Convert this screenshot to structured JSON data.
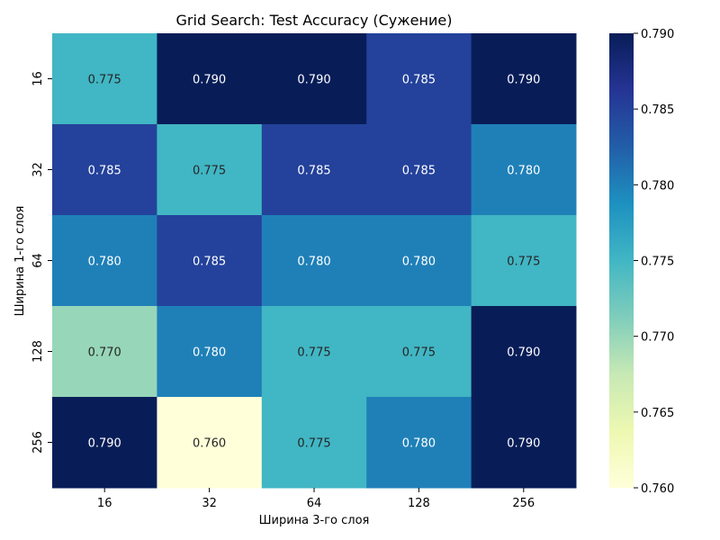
{
  "chart_data": {
    "type": "heatmap",
    "title": "Grid Search: Test Accuracy (Сужение)",
    "xlabel": "Ширина 3-го слоя",
    "ylabel": "Ширина 1-го слоя",
    "x_categories": [
      "16",
      "32",
      "64",
      "128",
      "256"
    ],
    "y_categories": [
      "16",
      "32",
      "64",
      "128",
      "256"
    ],
    "values": [
      [
        0.775,
        0.79,
        0.79,
        0.785,
        0.79
      ],
      [
        0.785,
        0.775,
        0.785,
        0.785,
        0.78
      ],
      [
        0.78,
        0.785,
        0.78,
        0.78,
        0.775
      ],
      [
        0.77,
        0.78,
        0.775,
        0.775,
        0.79
      ],
      [
        0.79,
        0.76,
        0.775,
        0.78,
        0.79
      ]
    ],
    "value_format_decimals": 3,
    "colormap": "YlGnBu",
    "vmin": 0.76,
    "vmax": 0.79,
    "colorbar_ticks": [
      0.76,
      0.765,
      0.77,
      0.775,
      0.78,
      0.785,
      0.79
    ],
    "colorbar_tick_labels": [
      "0.760",
      "0.765",
      "0.770",
      "0.775",
      "0.780",
      "0.785",
      "0.790"
    ],
    "grid": false
  }
}
